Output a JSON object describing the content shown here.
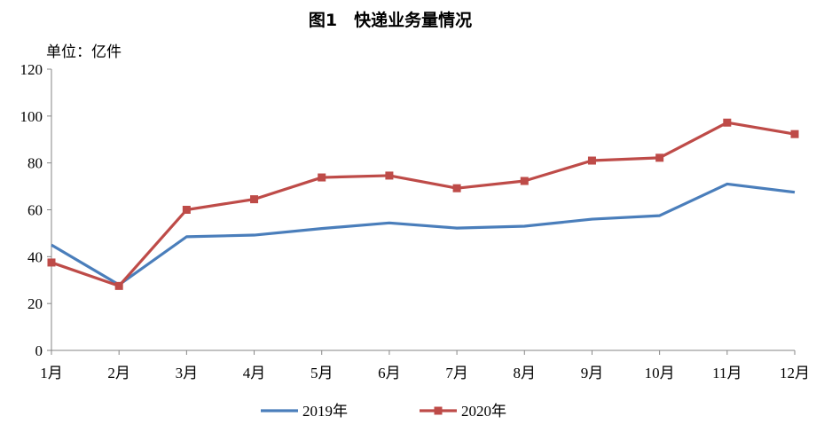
{
  "chart_data": {
    "type": "line",
    "title": "图1　快递业务量情况",
    "unit_label": "单位：亿件",
    "categories": [
      "1月",
      "2月",
      "3月",
      "4月",
      "5月",
      "6月",
      "7月",
      "8月",
      "9月",
      "10月",
      "11月",
      "12月"
    ],
    "ylim": [
      0,
      120
    ],
    "yticks": [
      0,
      20,
      40,
      60,
      80,
      100,
      120
    ],
    "ytick_labels": [
      "0",
      "20",
      "40",
      "60",
      "80",
      "100",
      "120"
    ],
    "grid": false,
    "legend_position": "bottom",
    "series": [
      {
        "name": "2019年",
        "color": "#4a7ebb",
        "marker": "none",
        "values": [
          45,
          28,
          48.5,
          49.2,
          52,
          54.4,
          52.2,
          53,
          56,
          57.5,
          71,
          67.5
        ]
      },
      {
        "name": "2020年",
        "color": "#be4b48",
        "marker": "square",
        "values": [
          37.5,
          27.5,
          60,
          64.5,
          73.8,
          74.6,
          69.2,
          72.3,
          81,
          82.2,
          97.2,
          92.3
        ]
      }
    ]
  }
}
